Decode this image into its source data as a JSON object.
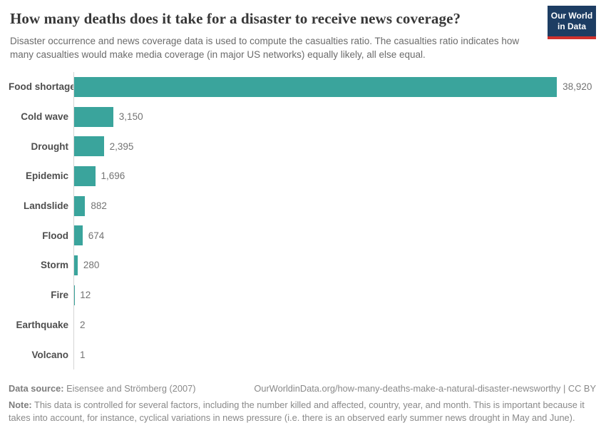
{
  "header": {
    "title": "How many deaths does it take for a disaster to receive news coverage?",
    "subtitle": "Disaster occurrence and news coverage data is used to compute the casualties ratio. The casualties ratio indicates how many casualties would make media coverage (in major US networks) equally likely, all else equal.",
    "logo": {
      "line1": "Our World",
      "line2": "in Data"
    }
  },
  "chart_data": {
    "type": "bar",
    "orientation": "horizontal",
    "title": "How many deaths does it take for a disaster to receive news coverage?",
    "categories": [
      "Food shortage",
      "Cold wave",
      "Drought",
      "Epidemic",
      "Landslide",
      "Flood",
      "Storm",
      "Fire",
      "Earthquake",
      "Volcano"
    ],
    "values": [
      38920,
      3150,
      2395,
      1696,
      882,
      674,
      280,
      12,
      2,
      1
    ],
    "value_labels": [
      "38,920",
      "3,150",
      "2,395",
      "1,696",
      "882",
      "674",
      "280",
      "12",
      "2",
      "1"
    ],
    "axis_max": 38920,
    "xlim": [
      0,
      38920
    ],
    "grid": false,
    "legend": false
  },
  "colors": {
    "bar": "#3aa49c",
    "logo_bg": "#1d3d63",
    "logo_stripe": "#d0312d",
    "logo_text": "#ffffff"
  },
  "footer": {
    "source_label": "Data source:",
    "source_text": " Eisensee and Strömberg (2007)",
    "link_text": "OurWorldinData.org/how-many-deaths-make-a-natural-disaster-newsworthy | CC BY",
    "note_label": "Note:",
    "note_text": " This data is controlled for several factors, including the number killed and affected, country, year, and month. This is important because it takes into account, for instance, cyclical variations in news pressure (i.e. there is an observed early summer news drought in May and June)."
  }
}
